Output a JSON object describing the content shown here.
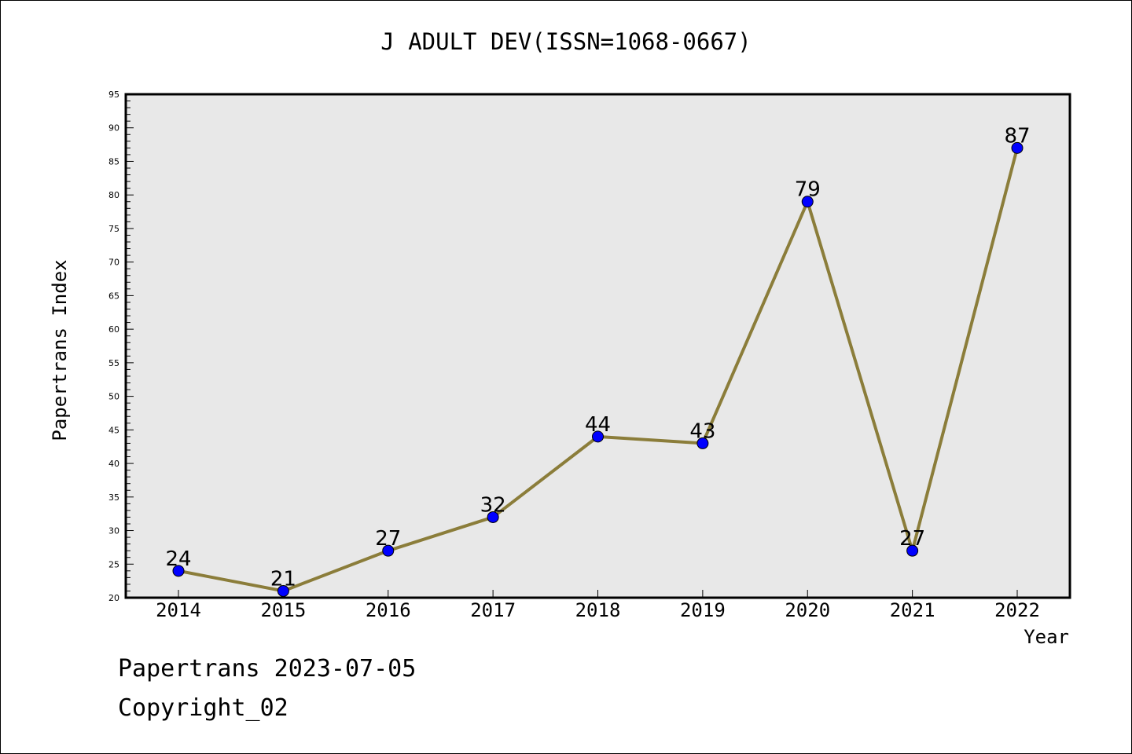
{
  "chart_data": {
    "type": "line",
    "title": "J ADULT DEV(ISSN=1068-0667)",
    "xlabel": "Year",
    "ylabel": "Papertrans Index",
    "ylim": [
      20,
      95
    ],
    "ytick_step": 5,
    "categories": [
      "2014",
      "2015",
      "2016",
      "2017",
      "2018",
      "2019",
      "2020",
      "2021",
      "2022"
    ],
    "series": [
      {
        "values": [
          24,
          21,
          27,
          32,
          44,
          43,
          79,
          27,
          87
        ]
      }
    ],
    "data_labels": true,
    "grid": false,
    "line_color": "#8b7d3a",
    "marker_color": "#0000ff",
    "plot_background": "#e8e8e8"
  },
  "footer": {
    "line1": "Papertrans 2023-07-05",
    "line2": "Copyright_02"
  }
}
